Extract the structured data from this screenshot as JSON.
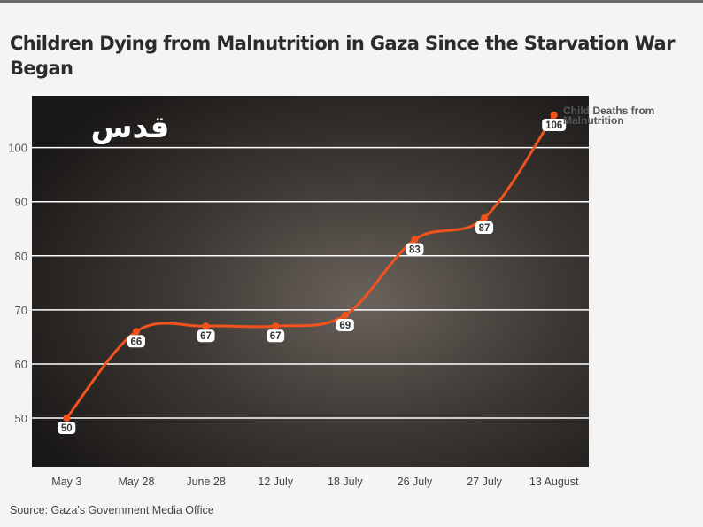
{
  "title": "Children Dying from Malnutrition in Gaza Since the Starvation War Began",
  "source": "Source: Gaza's Government Media Office",
  "logo_text": "قدس",
  "colors": {
    "line": "#f2531e",
    "background": "#f4f4f4",
    "grid": "#ffffff"
  },
  "chart_data": {
    "type": "line",
    "title": "Children Dying from Malnutrition in Gaza Since the Starvation War Began",
    "categories": [
      "May 3",
      "May 28",
      "June 28",
      "12 July",
      "18 July",
      "26 July",
      "27 July",
      "13 August"
    ],
    "series": [
      {
        "name": "Child Deaths from Malnutrition",
        "values": [
          50,
          66,
          67,
          67,
          69,
          83,
          87,
          106
        ]
      }
    ],
    "yticks": [
      50,
      60,
      70,
      80,
      90,
      100
    ],
    "ylim": [
      41,
      109.6
    ],
    "grid": true,
    "legend": "right-end-label",
    "series_label_lines": [
      "Child Deaths from",
      "Malnutrition"
    ]
  }
}
